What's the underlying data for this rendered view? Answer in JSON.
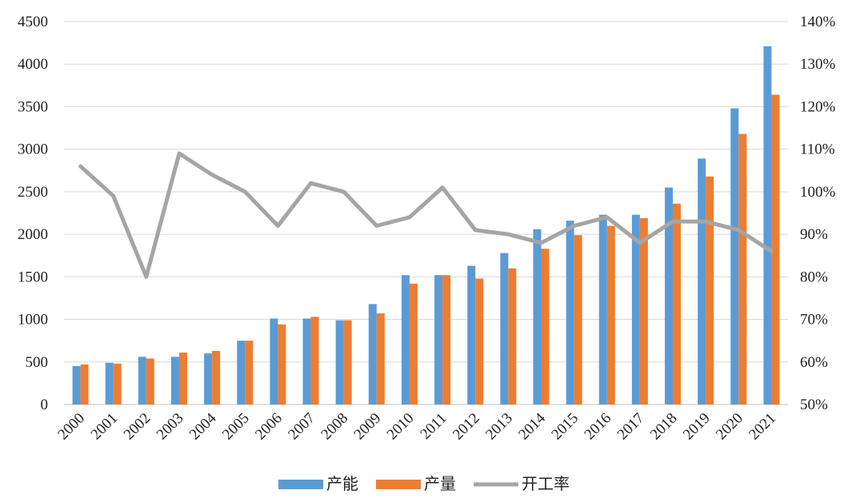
{
  "chart_data": {
    "type": "bar",
    "title": "",
    "xlabel": "",
    "ylabel": "",
    "categories": [
      "2000",
      "2001",
      "2002",
      "2003",
      "2004",
      "2005",
      "2006",
      "2007",
      "2008",
      "2009",
      "2010",
      "2011",
      "2012",
      "2013",
      "2014",
      "2015",
      "2016",
      "2017",
      "2018",
      "2019",
      "2020",
      "2021"
    ],
    "series": [
      {
        "name": "产能",
        "type": "bar",
        "axis": "left",
        "color": "#5B9BD5",
        "values": [
          450,
          490,
          560,
          560,
          600,
          750,
          1010,
          1010,
          990,
          1180,
          1520,
          1520,
          1630,
          1780,
          2060,
          2160,
          2230,
          2230,
          2550,
          2890,
          3480,
          4210
        ]
      },
      {
        "name": "产量",
        "type": "bar",
        "axis": "left",
        "color": "#ED7D31",
        "values": [
          470,
          480,
          540,
          610,
          630,
          750,
          940,
          1030,
          990,
          1070,
          1420,
          1520,
          1480,
          1600,
          1830,
          1990,
          2100,
          2190,
          2360,
          2680,
          3180,
          3640
        ]
      },
      {
        "name": "开工率",
        "type": "line",
        "axis": "right",
        "color": "#A5A5A5",
        "values": [
          106,
          99,
          80,
          109,
          104,
          100,
          92,
          102,
          100,
          92,
          94,
          101,
          91,
          90,
          88,
          92,
          94,
          88,
          93,
          93,
          91,
          86
        ]
      }
    ],
    "yaxis_left": {
      "min": 0,
      "max": 4500,
      "step": 500,
      "ticks": [
        "0",
        "500",
        "1000",
        "1500",
        "2000",
        "2500",
        "3000",
        "3500",
        "4000",
        "4500"
      ]
    },
    "yaxis_right": {
      "min": 50,
      "max": 140,
      "step": 10,
      "ticks": [
        "50%",
        "60%",
        "70%",
        "80%",
        "90%",
        "100%",
        "110%",
        "120%",
        "130%",
        "140%"
      ]
    },
    "grid": true,
    "legend_position": "bottom"
  }
}
